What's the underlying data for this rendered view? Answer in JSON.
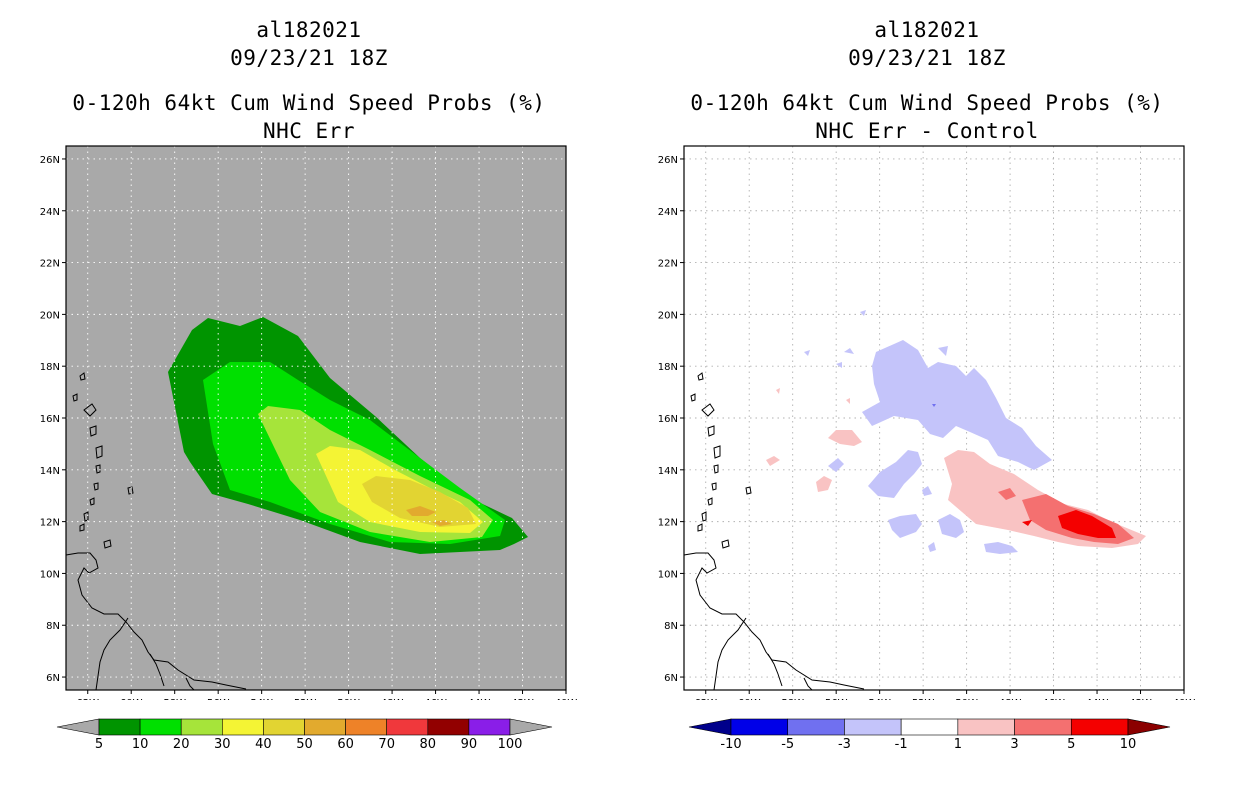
{
  "left": {
    "storm_id": "al182021",
    "datetime": "09/23/21 18Z",
    "title": "0-120h 64kt Cum Wind Speed Probs (%)",
    "subtitle": "NHC Err",
    "background": "#a9a9a9",
    "colorbar": {
      "colors": [
        "#009400",
        "#00e000",
        "#a6e43a",
        "#f4f434",
        "#e2d432",
        "#e2aa2e",
        "#ee8228",
        "#f0383c",
        "#920000",
        "#8a1ee8"
      ],
      "end_colors": [
        "#a9a9a9",
        "#a9a9a9"
      ],
      "labels": [
        "5",
        "10",
        "20",
        "30",
        "40",
        "50",
        "60",
        "70",
        "80",
        "90",
        "100"
      ]
    }
  },
  "right": {
    "storm_id": "al182021",
    "datetime": "09/23/21 18Z",
    "title": "0-120h 64kt Cum Wind Speed Probs (%)",
    "subtitle": "NHC Err - Control",
    "background": "#ffffff",
    "colorbar": {
      "colors": [
        "#0000e8",
        "#7070f0",
        "#c4c4fa",
        "#ffffff",
        "#f9c3c3",
        "#f47070",
        "#f40000"
      ],
      "end_colors": [
        "#00008b",
        "#8b0000"
      ],
      "labels": [
        "-10",
        "-5",
        "-3",
        "-1",
        "1",
        "3",
        "5",
        "10"
      ]
    }
  },
  "map": {
    "lon_range": [
      -63,
      -40
    ],
    "lat_range": [
      5.5,
      26.5
    ],
    "lon_ticks": [
      "62W",
      "60W",
      "58W",
      "56W",
      "54W",
      "52W",
      "50W",
      "48W",
      "46W",
      "44W",
      "42W",
      "40W"
    ],
    "lat_ticks": [
      "6N",
      "8N",
      "10N",
      "12N",
      "14N",
      "16N",
      "18N",
      "20N",
      "22N",
      "24N",
      "26N"
    ]
  }
}
